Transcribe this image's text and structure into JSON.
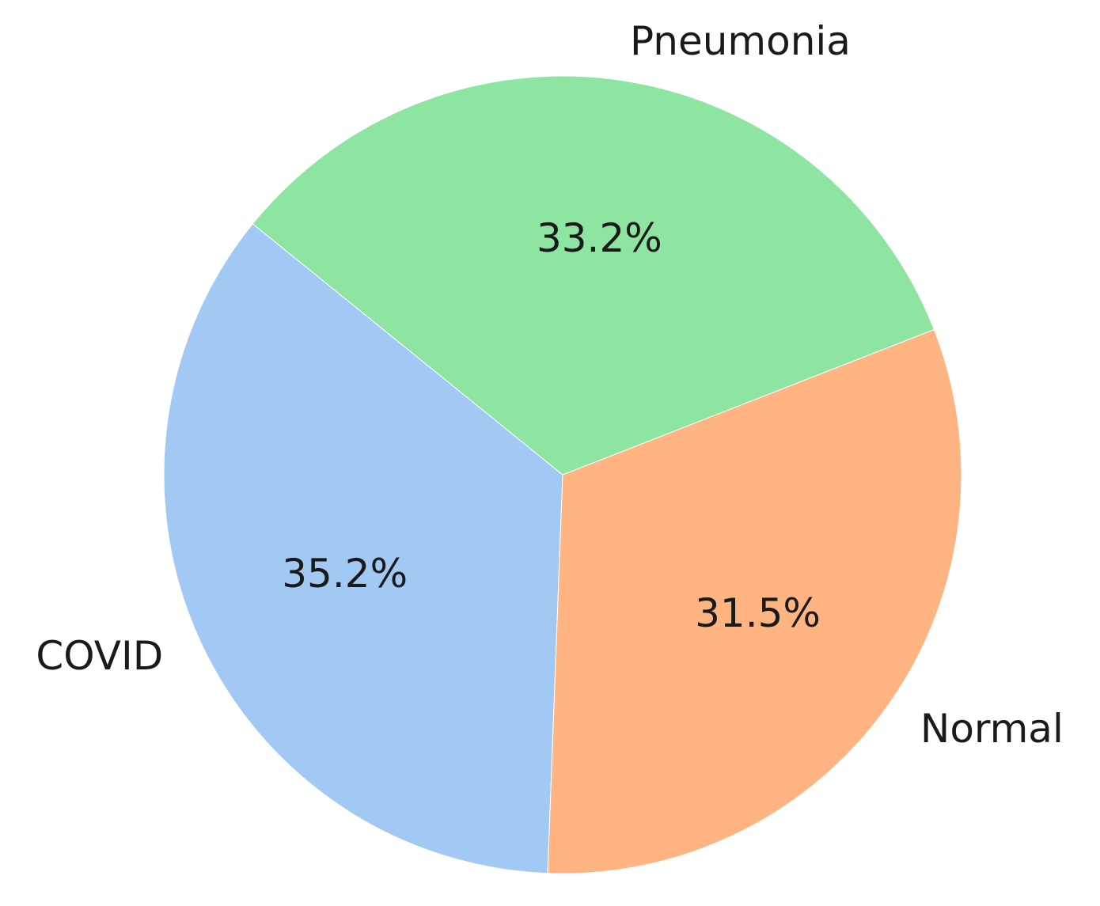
{
  "chart_data": {
    "type": "pie",
    "title": "",
    "start_angle_deg": 141,
    "direction": "counterclockwise",
    "slices": [
      {
        "label": "COVID",
        "value": 35.2,
        "display": "35.2%",
        "color": "#a1c9f4"
      },
      {
        "label": "Normal",
        "value": 31.5,
        "display": "31.5%",
        "color": "#ffb482"
      },
      {
        "label": "Pneumonia",
        "value": 33.2,
        "display": "33.2%",
        "color": "#8de5a1"
      }
    ],
    "legend": "none"
  }
}
